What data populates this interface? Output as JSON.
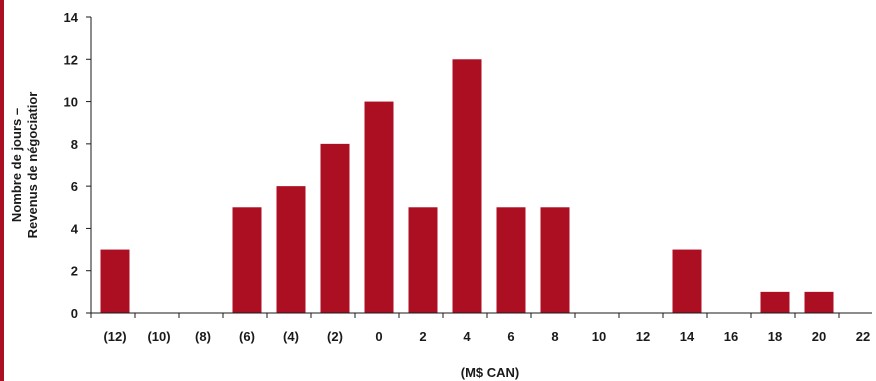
{
  "colors": {
    "bar": "#ad0f22",
    "stripe": "#ad0f22",
    "axis": "#1a1a1a",
    "text": "#1a1a1a"
  },
  "chart_data": {
    "type": "bar",
    "categories": [
      "(12)",
      "(10)",
      "(8)",
      "(6)",
      "(4)",
      "(2)",
      "0",
      "2",
      "4",
      "6",
      "8",
      "10",
      "12",
      "14",
      "16",
      "18",
      "20",
      "22"
    ],
    "values": [
      3,
      0,
      0,
      5,
      6,
      8,
      10,
      5,
      12,
      5,
      5,
      0,
      0,
      3,
      0,
      1,
      1,
      0
    ],
    "title": "",
    "xlabel": "(M$ CAN)",
    "ylabel_line1": "Nombre de jours –",
    "ylabel_line2": "Revenus de négociatior",
    "ylim": [
      0,
      14
    ],
    "yticks": [
      0,
      2,
      4,
      6,
      8,
      10,
      12,
      14
    ],
    "grid": false,
    "legend": "none"
  }
}
